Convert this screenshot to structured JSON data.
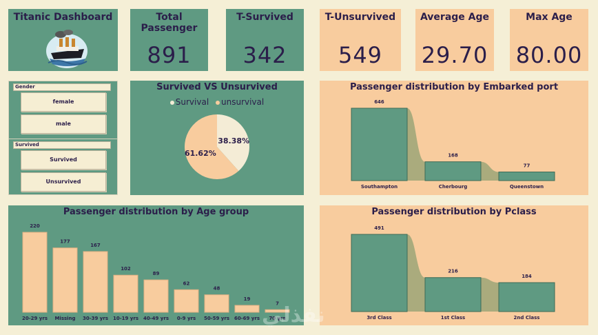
{
  "kpis": {
    "title_card": {
      "label": "Titanic Dashboard"
    },
    "total": {
      "label": "Total Passenger",
      "value": "891"
    },
    "survived": {
      "label": "T-Survived",
      "value": "342"
    },
    "unsurvived": {
      "label": "T-Unsurvived",
      "value": "549"
    },
    "avg_age": {
      "label": "Average Age",
      "value": "29.70"
    },
    "max_age": {
      "label": "Max Age",
      "value": "80.00"
    }
  },
  "slicers": {
    "gender": {
      "title": "Gender",
      "options": [
        "female",
        "male"
      ]
    },
    "survived": {
      "title": "Survived",
      "options": [
        "Survived",
        "Unsurvived"
      ]
    }
  },
  "pie": {
    "title": "Survived VS Unsurvived",
    "legend": [
      "Survival",
      "unsurvival"
    ]
  },
  "colors": {
    "green": "#5f9a82",
    "peach": "#f8cc9e",
    "cream": "#f5efd6",
    "bar_green": "#5f9a82",
    "ink": "#2b1e4a"
  },
  "watermark": {
    "text": "نفذلي"
  },
  "chart_data": [
    {
      "id": "pie",
      "type": "pie",
      "title": "Survived VS Unsurvived",
      "labels": [
        "Survival",
        "unsurvival"
      ],
      "values": [
        38.38,
        61.62
      ],
      "value_labels": [
        "38.38%",
        "61.62%"
      ],
      "colors": [
        "#f4ecd6",
        "#f8cc9e"
      ]
    },
    {
      "id": "embarked",
      "type": "bar",
      "title": "Passenger distribution by Embarked port",
      "categories": [
        "Southampton",
        "Cherbourg",
        "Queenstown"
      ],
      "values": [
        646,
        168,
        77
      ],
      "ylim": [
        0,
        646
      ]
    },
    {
      "id": "age",
      "type": "bar",
      "title": "Passenger distribution by Age group",
      "categories": [
        "20-29 yrs",
        "Missing",
        "30-39 yrs",
        "10-19 yrs",
        "40-49 yrs",
        "0-9 yrs",
        "50-59 yrs",
        "60-69 yrs",
        "70 yrs"
      ],
      "values": [
        220,
        177,
        167,
        102,
        89,
        62,
        48,
        19,
        7
      ],
      "ylim": [
        0,
        220
      ]
    },
    {
      "id": "pclass",
      "type": "bar",
      "title": "Passenger distribution by Pclass",
      "categories": [
        "3rd Class",
        "1st Class",
        "2nd Class"
      ],
      "values": [
        491,
        216,
        184
      ],
      "ylim": [
        0,
        491
      ]
    }
  ]
}
